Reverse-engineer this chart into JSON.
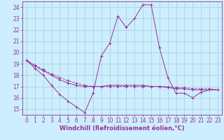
{
  "background_color": "#cceeff",
  "grid_color": "#aacccc",
  "line_color": "#993399",
  "xlabel": "Windchill (Refroidissement éolien,°C)",
  "xlim": [
    -0.5,
    23.5
  ],
  "ylim": [
    14.5,
    24.5
  ],
  "xticks": [
    0,
    1,
    2,
    3,
    4,
    5,
    6,
    7,
    8,
    9,
    10,
    11,
    12,
    13,
    14,
    15,
    16,
    17,
    18,
    19,
    20,
    21,
    22,
    23
  ],
  "yticks": [
    15,
    16,
    17,
    18,
    19,
    20,
    21,
    22,
    23,
    24
  ],
  "series1_x": [
    0,
    1,
    2,
    3,
    4,
    5,
    6,
    7,
    8,
    9,
    10,
    11,
    12,
    13,
    14,
    15,
    16,
    17,
    18,
    19,
    20,
    21,
    22,
    23
  ],
  "series1_y": [
    19.3,
    18.6,
    18.0,
    17.1,
    16.3,
    15.7,
    15.2,
    14.7,
    16.4,
    19.7,
    20.8,
    23.2,
    22.2,
    23.0,
    24.2,
    24.2,
    20.4,
    17.8,
    16.4,
    16.4,
    16.0,
    16.5,
    16.7,
    16.7
  ],
  "series2_x": [
    0,
    1,
    2,
    3,
    4,
    5,
    6,
    7,
    8,
    9,
    10,
    11,
    12,
    13,
    14,
    15,
    16,
    17,
    18,
    19,
    20,
    21,
    22,
    23
  ],
  "series2_y": [
    19.3,
    18.8,
    18.4,
    18.0,
    17.6,
    17.3,
    17.1,
    17.0,
    17.0,
    17.0,
    17.1,
    17.1,
    17.1,
    17.1,
    17.1,
    17.0,
    17.0,
    16.9,
    16.8,
    16.8,
    16.7,
    16.7,
    16.7,
    16.7
  ],
  "series3_x": [
    0,
    1,
    2,
    3,
    4,
    5,
    6,
    7,
    8,
    9,
    10,
    11,
    12,
    13,
    14,
    15,
    16,
    17,
    18,
    19,
    20,
    21,
    22,
    23
  ],
  "series3_y": [
    19.3,
    18.9,
    18.5,
    18.1,
    17.8,
    17.5,
    17.3,
    17.1,
    17.0,
    17.0,
    17.0,
    17.0,
    17.0,
    17.0,
    17.0,
    17.0,
    17.0,
    17.0,
    16.9,
    16.9,
    16.8,
    16.8,
    16.8,
    16.7
  ],
  "tick_fontsize": 5.5,
  "xlabel_fontsize": 6.0
}
